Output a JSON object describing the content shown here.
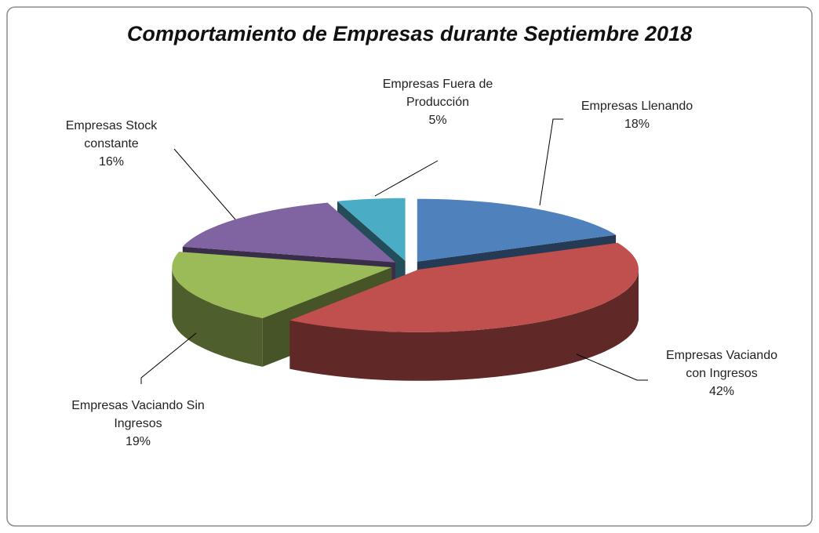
{
  "chart_data": {
    "type": "pie",
    "title": "Comportamiento de Empresas durante Septiembre 2018",
    "categories": [
      "Empresas Llenando",
      "Empresas Vaciando con Ingresos",
      "Empresas Vaciando Sin Ingresos",
      "Empresas Stock constante",
      "Empresas Fuera de Producción"
    ],
    "values": [
      18,
      42,
      19,
      16,
      5
    ],
    "value_labels": [
      "18%",
      "42%",
      "19%",
      "16%",
      "5%"
    ],
    "colors": [
      "#4f81bd",
      "#c0504d",
      "#9bbb59",
      "#8064a2",
      "#4bacc6"
    ]
  }
}
